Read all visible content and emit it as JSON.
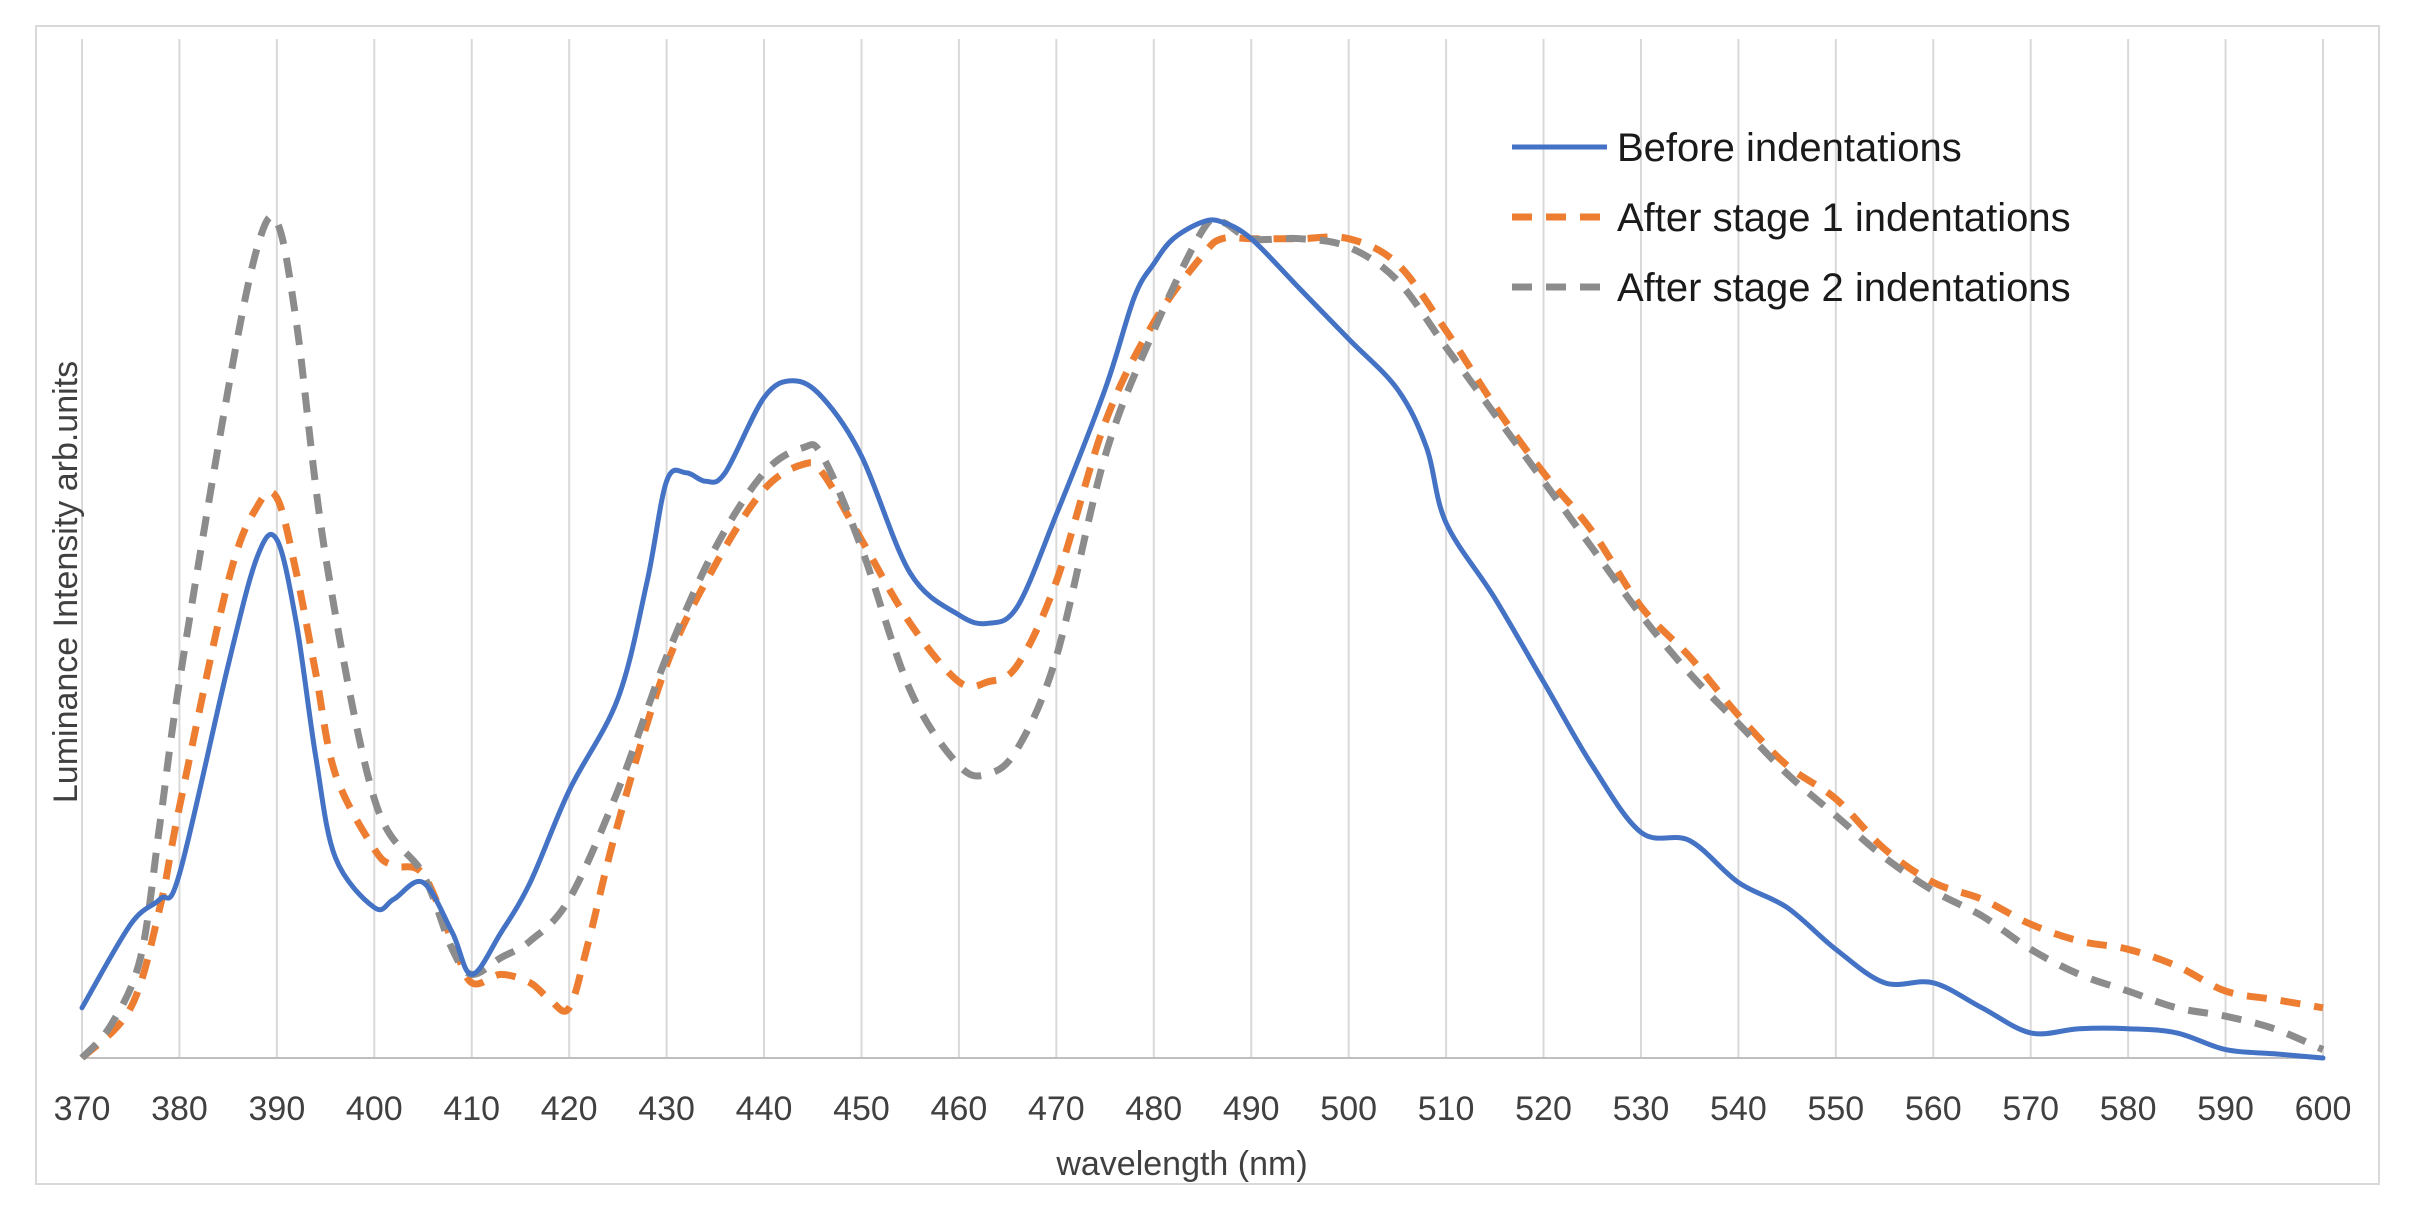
{
  "chart_data": {
    "type": "line",
    "title": "",
    "xlabel": "wavelength (nm)",
    "ylabel": "Luminance Intensity arb.units",
    "xlim": [
      370,
      600
    ],
    "ylim": [
      0,
      1
    ],
    "grid": "vertical",
    "legend_position": "top-right",
    "x_ticks": [
      370,
      380,
      390,
      400,
      410,
      420,
      430,
      440,
      450,
      460,
      470,
      480,
      490,
      500,
      510,
      520,
      530,
      540,
      550,
      560,
      570,
      580,
      590,
      600
    ],
    "colors": {
      "blue": "#4472c4",
      "orange": "#ed7d31",
      "gray": "#8c8c8c",
      "grid": "#d9d9d9",
      "axis": "#bfbfbf"
    },
    "series": [
      {
        "name": "Before indentations",
        "color": "#4472c4",
        "style": "solid",
        "x": [
          370,
          375,
          378,
          380,
          385,
          388,
          390,
          392,
          394,
          396,
          400,
          402,
          405,
          408,
          410,
          413,
          416,
          420,
          425,
          428,
          430,
          432,
          434,
          436,
          440,
          443,
          446,
          450,
          455,
          460,
          463,
          466,
          470,
          475,
          478,
          480,
          482,
          485,
          487,
          490,
          495,
          500,
          505,
          508,
          510,
          515,
          520,
          525,
          530,
          535,
          540,
          545,
          550,
          555,
          560,
          565,
          570,
          575,
          580,
          585,
          590,
          595,
          600
        ],
        "y": [
          0.06,
          0.16,
          0.19,
          0.22,
          0.47,
          0.6,
          0.62,
          0.52,
          0.36,
          0.24,
          0.18,
          0.19,
          0.21,
          0.15,
          0.1,
          0.15,
          0.21,
          0.32,
          0.43,
          0.57,
          0.69,
          0.7,
          0.69,
          0.7,
          0.79,
          0.81,
          0.79,
          0.72,
          0.58,
          0.53,
          0.52,
          0.54,
          0.65,
          0.8,
          0.91,
          0.95,
          0.98,
          1.0,
          1.0,
          0.98,
          0.92,
          0.86,
          0.8,
          0.73,
          0.64,
          0.55,
          0.45,
          0.35,
          0.27,
          0.26,
          0.21,
          0.18,
          0.13,
          0.09,
          0.09,
          0.06,
          0.03,
          0.035,
          0.035,
          0.03,
          0.01,
          0.005,
          0.0
        ]
      },
      {
        "name": "After stage 1 indentations",
        "color": "#ed7d31",
        "style": "dashed",
        "x": [
          370,
          375,
          378,
          380,
          385,
          388,
          390,
          392,
          394,
          396,
          400,
          402,
          405,
          408,
          410,
          413,
          416,
          418,
          420,
          422,
          425,
          430,
          435,
          440,
          444,
          446,
          450,
          455,
          460,
          463,
          466,
          470,
          475,
          480,
          485,
          487,
          490,
          495,
          500,
          505,
          510,
          515,
          520,
          525,
          530,
          535,
          540,
          545,
          550,
          555,
          560,
          565,
          570,
          575,
          580,
          585,
          590,
          595,
          600
        ],
        "y": [
          0.0,
          0.06,
          0.18,
          0.3,
          0.57,
          0.66,
          0.67,
          0.58,
          0.46,
          0.34,
          0.25,
          0.23,
          0.22,
          0.14,
          0.09,
          0.1,
          0.09,
          0.07,
          0.06,
          0.14,
          0.28,
          0.47,
          0.59,
          0.68,
          0.71,
          0.7,
          0.62,
          0.52,
          0.45,
          0.45,
          0.47,
          0.57,
          0.76,
          0.88,
          0.96,
          0.98,
          0.98,
          0.98,
          0.98,
          0.95,
          0.87,
          0.78,
          0.7,
          0.63,
          0.54,
          0.48,
          0.41,
          0.35,
          0.31,
          0.25,
          0.21,
          0.19,
          0.16,
          0.14,
          0.13,
          0.11,
          0.08,
          0.07,
          0.06
        ]
      },
      {
        "name": "After stage 2 indentations",
        "color": "#8c8c8c",
        "style": "dashed",
        "x": [
          370,
          373,
          376,
          378,
          380,
          385,
          388,
          390,
          392,
          395,
          400,
          405,
          408,
          410,
          413,
          416,
          420,
          425,
          430,
          435,
          440,
          444,
          446,
          450,
          455,
          460,
          463,
          466,
          470,
          475,
          480,
          485,
          487,
          490,
          495,
          500,
          505,
          510,
          515,
          520,
          525,
          530,
          535,
          540,
          545,
          550,
          555,
          560,
          565,
          570,
          575,
          580,
          585,
          590,
          595,
          600
        ],
        "y": [
          0.0,
          0.04,
          0.12,
          0.28,
          0.45,
          0.8,
          0.97,
          1.0,
          0.88,
          0.6,
          0.31,
          0.22,
          0.13,
          0.1,
          0.12,
          0.14,
          0.19,
          0.32,
          0.48,
          0.61,
          0.7,
          0.73,
          0.72,
          0.61,
          0.44,
          0.35,
          0.34,
          0.37,
          0.48,
          0.72,
          0.87,
          0.99,
          1.0,
          0.98,
          0.98,
          0.97,
          0.93,
          0.85,
          0.77,
          0.69,
          0.61,
          0.53,
          0.46,
          0.4,
          0.34,
          0.29,
          0.24,
          0.2,
          0.17,
          0.13,
          0.1,
          0.08,
          0.06,
          0.05,
          0.035,
          0.01
        ]
      }
    ]
  }
}
